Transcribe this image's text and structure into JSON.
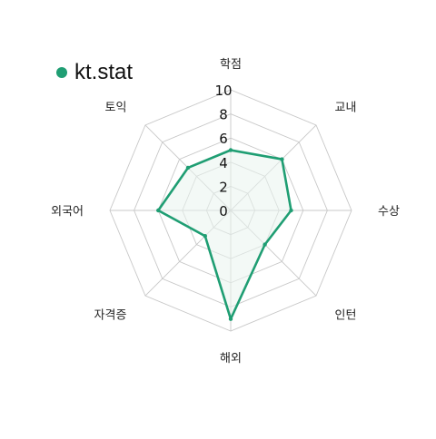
{
  "chart_data": {
    "type": "radar",
    "categories": [
      "학점",
      "교내",
      "수상",
      "인턴",
      "해외",
      "자격증",
      "외국어",
      "토익"
    ],
    "series": [
      {
        "name": "kt.stat",
        "values": [
          5,
          6,
          5,
          4,
          9,
          3,
          6,
          5
        ],
        "color": "#1f9e73"
      }
    ],
    "rlim": [
      0,
      10
    ],
    "rticks": [
      0,
      2,
      4,
      6,
      8,
      10
    ],
    "grid": true,
    "legend_position": "top-left",
    "colors": {
      "grid": "#c8c8c8",
      "tick_text": "#111111",
      "label_text": "#222222",
      "fill": "#e9f4ef"
    }
  }
}
